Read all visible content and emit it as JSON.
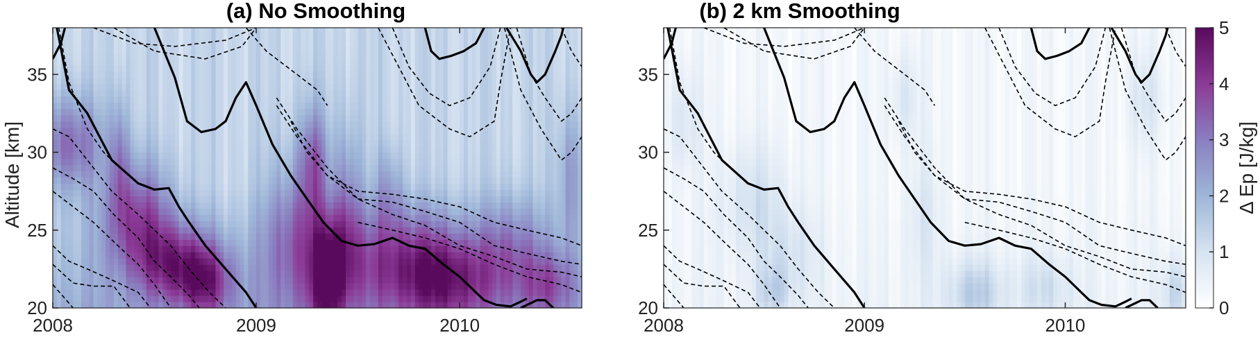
{
  "colors": {
    "colormap": [
      "#ffffff",
      "#d6e3f1",
      "#9eb6d8",
      "#8a7fc0",
      "#8b3a96",
      "#5a0a5c"
    ],
    "contour": "#000000",
    "background": "#ffffff"
  },
  "colorbar": {
    "label": "Δ Ep [J/kg]",
    "range": [
      0,
      5
    ],
    "ticks": [
      "0",
      "1",
      "2",
      "3",
      "4",
      "5"
    ]
  },
  "chart_data": [
    {
      "type": "heatmap",
      "title": "(a) No Smoothing",
      "xlabel": "",
      "ylabel": "Altitude [km]",
      "xlim": [
        2008.0,
        2010.6
      ],
      "ylim": [
        20,
        38
      ],
      "x_ticks": [
        2008,
        2009,
        2010
      ],
      "x_tick_labels": [
        "2008",
        "2009",
        "2010"
      ],
      "y_ticks": [
        20,
        25,
        30,
        35
      ],
      "y_tick_labels": [
        "20",
        "25",
        "30",
        "35"
      ],
      "colorbar_range": [
        0,
        5
      ],
      "blobs": [
        {
          "t": 2008.08,
          "z": 30.5,
          "st": 0.12,
          "sz": 2.2,
          "a": 2.0
        },
        {
          "t": 2008.33,
          "z": 29.5,
          "st": 0.03,
          "sz": 3.0,
          "a": 1.4
        },
        {
          "t": 2008.42,
          "z": 26.0,
          "st": 0.12,
          "sz": 2.5,
          "a": 2.2
        },
        {
          "t": 2008.6,
          "z": 23.0,
          "st": 0.14,
          "sz": 1.8,
          "a": 2.3
        },
        {
          "t": 2008.75,
          "z": 21.6,
          "st": 0.1,
          "sz": 1.6,
          "a": 2.0
        },
        {
          "t": 2009.2,
          "z": 24.5,
          "st": 0.12,
          "sz": 3.5,
          "a": 1.8
        },
        {
          "t": 2009.35,
          "z": 22.0,
          "st": 0.06,
          "sz": 2.5,
          "a": 2.8
        },
        {
          "t": 2009.28,
          "z": 29.5,
          "st": 0.05,
          "sz": 2.5,
          "a": 1.8
        },
        {
          "t": 2009.45,
          "z": 26.0,
          "st": 0.05,
          "sz": 4.0,
          "a": 1.5
        },
        {
          "t": 2009.7,
          "z": 23.0,
          "st": 0.22,
          "sz": 2.5,
          "a": 2.2
        },
        {
          "t": 2009.65,
          "z": 27.5,
          "st": 0.05,
          "sz": 2.0,
          "a": 1.0
        },
        {
          "t": 2009.95,
          "z": 21.8,
          "st": 0.15,
          "sz": 2.0,
          "a": 2.0
        },
        {
          "t": 2010.25,
          "z": 23.5,
          "st": 0.12,
          "sz": 2.5,
          "a": 1.5
        },
        {
          "t": 2010.45,
          "z": 21.5,
          "st": 0.1,
          "sz": 1.5,
          "a": 1.5
        },
        {
          "t": 2010.55,
          "z": 28.5,
          "st": 0.05,
          "sz": 3.0,
          "a": 1.2
        }
      ],
      "base_level": 1.3,
      "base_low_alt": 0.9,
      "streak_amplitude": 0.35
    },
    {
      "type": "heatmap",
      "title": "(b) 2 km Smoothing",
      "xlabel": "",
      "ylabel": "",
      "xlim": [
        2008.0,
        2010.6
      ],
      "ylim": [
        20,
        38
      ],
      "x_ticks": [
        2008,
        2009,
        2010
      ],
      "x_tick_labels": [
        "2008",
        "2009",
        "2010"
      ],
      "y_ticks": [
        20,
        25,
        30,
        35
      ],
      "y_tick_labels": [
        "20",
        "25",
        "30",
        "35"
      ],
      "colorbar_range": [
        0,
        5
      ],
      "blobs": [
        {
          "t": 2008.1,
          "z": 32.0,
          "st": 0.06,
          "sz": 2.5,
          "a": 0.6
        },
        {
          "t": 2008.45,
          "z": 27.0,
          "st": 0.12,
          "sz": 2.5,
          "a": 0.7
        },
        {
          "t": 2008.62,
          "z": 23.5,
          "st": 0.1,
          "sz": 2.0,
          "a": 0.6
        },
        {
          "t": 2008.55,
          "z": 21.0,
          "st": 0.06,
          "sz": 1.2,
          "a": 0.9
        },
        {
          "t": 2009.2,
          "z": 33.5,
          "st": 0.05,
          "sz": 2.0,
          "a": 0.6
        },
        {
          "t": 2009.3,
          "z": 26.0,
          "st": 0.06,
          "sz": 3.0,
          "a": 0.5
        },
        {
          "t": 2009.55,
          "z": 21.0,
          "st": 0.1,
          "sz": 1.5,
          "a": 1.1
        },
        {
          "t": 2009.9,
          "z": 21.3,
          "st": 0.1,
          "sz": 1.5,
          "a": 0.7
        },
        {
          "t": 2010.4,
          "z": 33.5,
          "st": 0.06,
          "sz": 2.0,
          "a": 0.6
        },
        {
          "t": 2010.55,
          "z": 21.0,
          "st": 0.05,
          "sz": 1.5,
          "a": 0.9
        }
      ],
      "base_level": 0.3,
      "base_low_alt": 0.15,
      "streak_amplitude": 0.25
    }
  ],
  "contours": {
    "solid": [
      {
        "name": "thick-descent-1",
        "t": [
          2008.02,
          2008.08,
          2008.17,
          2008.29,
          2008.42,
          2008.5,
          2008.57,
          2008.62,
          2008.67,
          2008.75,
          2008.85,
          2008.95,
          2009.0
        ],
        "z": [
          38.0,
          34.0,
          32.5,
          29.5,
          28.0,
          27.6,
          27.7,
          26.5,
          25.5,
          24.0,
          22.5,
          21.0,
          20.0
        ]
      },
      {
        "name": "thick-descent-2",
        "t": [
          2008.5,
          2008.6,
          2008.66,
          2008.73,
          2008.8,
          2008.85,
          2008.9,
          2008.95,
          2009.0,
          2009.08,
          2009.17,
          2009.25,
          2009.33,
          2009.42,
          2009.5,
          2009.58,
          2009.67,
          2009.75,
          2009.83,
          2009.92,
          2010.0,
          2010.08,
          2010.12,
          2010.18,
          2010.25,
          2010.3,
          2010.33
        ],
        "z": [
          38.0,
          34.8,
          32.0,
          31.3,
          31.5,
          32.0,
          33.5,
          34.5,
          33.0,
          30.5,
          28.5,
          27.0,
          25.5,
          24.3,
          24.0,
          24.1,
          24.5,
          24.0,
          23.8,
          22.8,
          22.0,
          21.0,
          20.5,
          20.2,
          20.1,
          20.4,
          20.6
        ]
      },
      {
        "name": "thick-top-loop",
        "t": [
          2010.23,
          2010.3,
          2010.35,
          2010.38,
          2010.42,
          2010.47,
          2010.5,
          2010.51
        ],
        "z": [
          38.0,
          36.5,
          35.0,
          34.5,
          35.0,
          36.5,
          37.5,
          38.0
        ]
      },
      {
        "name": "thick-top-cup",
        "t": [
          2009.83,
          2009.86,
          2009.9,
          2009.96,
          2010.02,
          2010.08,
          2010.12
        ],
        "z": [
          38.0,
          36.5,
          36.0,
          36.2,
          36.5,
          37.0,
          38.0
        ]
      },
      {
        "name": "thick-edge-left",
        "t": [
          2008.0,
          2008.04,
          2008.06
        ],
        "z": [
          36.0,
          37.0,
          38.0
        ]
      },
      {
        "name": "thick-bottom-right",
        "t": [
          2010.3,
          2010.38,
          2010.42,
          2010.46
        ],
        "z": [
          20.0,
          20.5,
          20.5,
          20.0
        ]
      }
    ],
    "dashed": [
      {
        "name": "dash-1",
        "t": [
          2008.0,
          2008.08,
          2008.17,
          2008.29,
          2008.42,
          2008.5,
          2008.58,
          2008.67,
          2008.77,
          2008.85
        ],
        "z": [
          31.5,
          31.0,
          29.5,
          27.5,
          26.0,
          25.0,
          24.0,
          22.5,
          21.0,
          20.0
        ]
      },
      {
        "name": "dash-2",
        "t": [
          2008.0,
          2008.1,
          2008.2,
          2008.3,
          2008.42,
          2008.5,
          2008.58,
          2008.67,
          2008.72
        ],
        "z": [
          29.0,
          28.3,
          27.5,
          26.0,
          24.5,
          23.0,
          22.0,
          20.8,
          20.0
        ]
      },
      {
        "name": "dash-3",
        "t": [
          2008.0,
          2008.1,
          2008.2,
          2008.32,
          2008.42,
          2008.5,
          2008.58
        ],
        "z": [
          27.5,
          26.5,
          25.5,
          24.0,
          22.8,
          21.5,
          20.0
        ]
      },
      {
        "name": "dash-4",
        "t": [
          2008.0,
          2008.08,
          2008.17,
          2008.29,
          2008.42,
          2008.48
        ],
        "z": [
          24.0,
          23.0,
          22.5,
          21.8,
          21.0,
          20.0
        ]
      },
      {
        "name": "dash-5",
        "t": [
          2008.0,
          2008.1,
          2008.2,
          2008.3,
          2008.38
        ],
        "z": [
          22.8,
          21.6,
          21.4,
          21.4,
          20.0
        ]
      },
      {
        "name": "dash-6",
        "t": [
          2008.0,
          2008.06,
          2008.1
        ],
        "z": [
          21.5,
          20.6,
          20.0
        ]
      },
      {
        "name": "dash-7",
        "t": [
          2008.03,
          2008.08,
          2008.17,
          2008.25,
          2008.29
        ],
        "z": [
          38.0,
          34.5,
          31.5,
          30.0,
          29.5
        ]
      },
      {
        "name": "dash-8",
        "t": [
          2009.17,
          2009.25,
          2009.35,
          2009.5,
          2009.67,
          2009.83,
          2010.0,
          2010.17,
          2010.33,
          2010.5,
          2010.6
        ],
        "z": [
          32.0,
          30.0,
          28.5,
          27.5,
          27.3,
          27.0,
          26.5,
          25.5,
          25.0,
          24.5,
          24.0
        ]
      },
      {
        "name": "dash-9",
        "t": [
          2009.1,
          2009.2,
          2009.35,
          2009.5,
          2009.67,
          2009.83,
          2010.0,
          2010.17,
          2010.33,
          2010.5,
          2010.6
        ],
        "z": [
          33.0,
          31.0,
          28.5,
          27.0,
          26.8,
          26.2,
          25.5,
          24.0,
          23.5,
          23.0,
          22.8
        ]
      },
      {
        "name": "dash-10",
        "t": [
          2009.1,
          2009.2,
          2009.35,
          2009.5,
          2009.67,
          2009.83,
          2010.0,
          2010.17,
          2010.33,
          2010.5,
          2010.6
        ],
        "z": [
          33.5,
          31.5,
          29.0,
          27.0,
          26.0,
          25.3,
          24.0,
          23.3,
          22.5,
          22.3,
          22.0
        ]
      },
      {
        "name": "dash-11",
        "t": [
          2009.5,
          2009.67,
          2009.83,
          2010.0,
          2010.17,
          2010.33,
          2010.5,
          2010.6
        ],
        "z": [
          25.5,
          25.0,
          24.5,
          23.8,
          22.8,
          22.0,
          21.5,
          21.0
        ]
      },
      {
        "name": "dash-12",
        "t": [
          2008.2,
          2008.4,
          2008.6,
          2008.85,
          2009.0
        ],
        "z": [
          38.0,
          37.0,
          36.8,
          37.2,
          38.0
        ]
      },
      {
        "name": "dash-13",
        "t": [
          2008.3,
          2008.5,
          2008.75,
          2008.93,
          2009.0
        ],
        "z": [
          38.0,
          36.5,
          36.0,
          36.8,
          38.0
        ]
      },
      {
        "name": "dash-14",
        "t": [
          2008.95,
          2009.05,
          2009.12,
          2009.2,
          2009.3,
          2009.35
        ],
        "z": [
          38.0,
          36.5,
          35.8,
          35.0,
          34.0,
          33.0
        ]
      },
      {
        "name": "dash-15",
        "t": [
          2009.6,
          2009.7,
          2009.8,
          2009.95,
          2010.05,
          2010.17,
          2010.2,
          2010.25
        ],
        "z": [
          38.0,
          35.5,
          33.0,
          31.5,
          31.0,
          32.0,
          34.5,
          38.0
        ]
      },
      {
        "name": "dash-16",
        "t": [
          2009.67,
          2009.75,
          2009.85,
          2009.95,
          2010.05,
          2010.15,
          2010.2
        ],
        "z": [
          38.0,
          35.5,
          33.8,
          33.0,
          33.5,
          35.5,
          38.0
        ]
      },
      {
        "name": "dash-17",
        "t": [
          2010.22,
          2010.3,
          2010.4,
          2010.5,
          2010.55,
          2010.6
        ],
        "z": [
          38.0,
          34.0,
          31.5,
          29.5,
          30.0,
          31.0
        ]
      },
      {
        "name": "dash-18",
        "t": [
          2010.28,
          2010.35,
          2010.42,
          2010.5,
          2010.55,
          2010.6
        ],
        "z": [
          38.0,
          35.0,
          33.5,
          32.0,
          32.5,
          33.5
        ]
      },
      {
        "name": "dash-19",
        "t": [
          2010.5,
          2010.55,
          2010.6
        ],
        "z": [
          38.0,
          36.5,
          35.5
        ]
      }
    ]
  }
}
